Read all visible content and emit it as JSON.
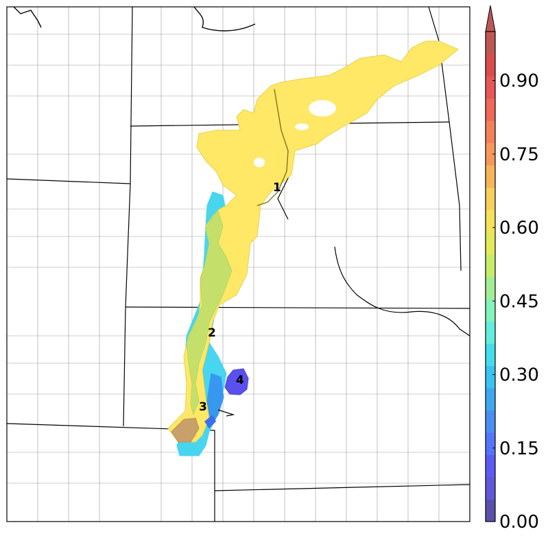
{
  "map": {
    "region_labels": [
      "1",
      "2",
      "3",
      "4"
    ]
  },
  "colorbar": {
    "tick_labels": [
      "0.00",
      "0.15",
      "0.30",
      "0.45",
      "0.60",
      "0.75",
      "0.90"
    ],
    "ticks": [
      0.0,
      0.15,
      0.3,
      0.45,
      0.6,
      0.75,
      0.9
    ],
    "min": 0.0,
    "max": 1.0,
    "extend": "max",
    "colors": [
      "#5a50ab",
      "#6058d8",
      "#5c5cf5",
      "#5474fa",
      "#4a8ff2",
      "#3ea8ee",
      "#39c4f0",
      "#43dceb",
      "#62eedc",
      "#82f3b9",
      "#a3ee92",
      "#c7ec6c",
      "#e3ea58",
      "#f4e259",
      "#f8cf5c",
      "#f6b45b",
      "#f4995a",
      "#f28159",
      "#f06858",
      "#e85656",
      "#d94d4d",
      "#be5656"
    ]
  },
  "colors": {
    "yellow": "#ffe866",
    "green": "#c5e06a",
    "cyan": "#48d5f0",
    "blue": "#3898f0",
    "purple": "#5a50ee",
    "brown": "#c8a06a"
  }
}
